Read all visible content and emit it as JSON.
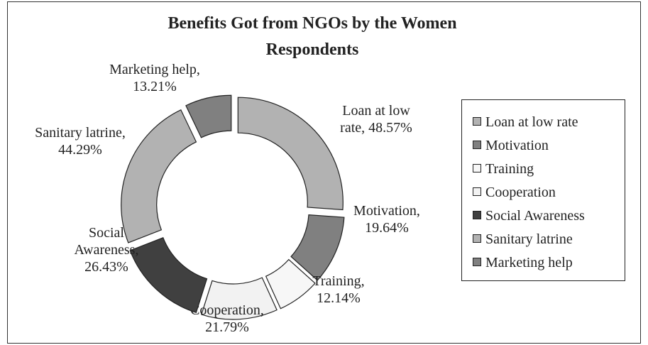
{
  "chart_data": {
    "type": "donut",
    "title": "Benefits Got from NGOs by the Women Respondents",
    "categories": [
      "Loan at low rate",
      "Motivation",
      "Training",
      "Cooperation",
      "Social Awareness",
      "Sanitary latrine",
      "Marketing help"
    ],
    "values": [
      48.57,
      19.64,
      12.14,
      21.79,
      26.43,
      44.29,
      13.21
    ],
    "value_labels": [
      "Loan at low\nrate, 48.57%",
      "Motivation,\n19.64%",
      "Training,\n12.14%",
      "Cooperation,\n21.79%",
      "Social\nAwareness,\n26.43%",
      "Sanitary latrine,\n44.29%",
      "Marketing help,\n13.21%"
    ],
    "colors": [
      "#b2b2b2",
      "#808080",
      "#f7f7f7",
      "#f2f2f2",
      "#404040",
      "#b2b2b2",
      "#808080"
    ],
    "legend": "right"
  }
}
